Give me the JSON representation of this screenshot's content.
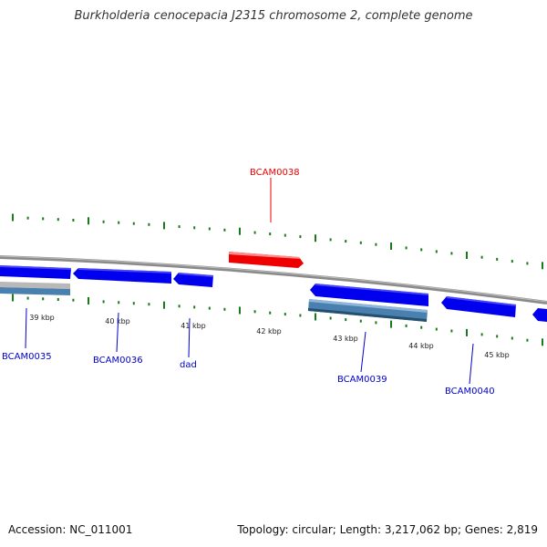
{
  "title": "Burkholderia cenocepacia J2315 chromosome 2, complete genome",
  "footer": {
    "accession": "Accession: NC_011001",
    "summary": "Topology: circular; Length: 3,217,062 bp; Genes: 2,819"
  },
  "colors": {
    "gene_blue": "#0000ee",
    "gene_steel": "#4a80b0",
    "gene_grey": "#b8b8b8",
    "highlight_red": "#ee0000",
    "tick_green": "#1a7a1a",
    "backbone": "#888888"
  },
  "ticks": [
    "39 kbp",
    "40 kbp",
    "41 kbp",
    "42 kbp",
    "43 kbp",
    "44 kbp",
    "45 kbp"
  ],
  "genes": [
    {
      "label": "BCAM0035",
      "color": "#0000cc"
    },
    {
      "label": "BCAM0036",
      "color": "#0000cc"
    },
    {
      "label": "dad",
      "color": "#0000cc"
    },
    {
      "label": "BCAM0038",
      "color": "#ee0000"
    },
    {
      "label": "BCAM0039",
      "color": "#0000cc"
    },
    {
      "label": "BCAM0040",
      "color": "#0000cc"
    }
  ]
}
